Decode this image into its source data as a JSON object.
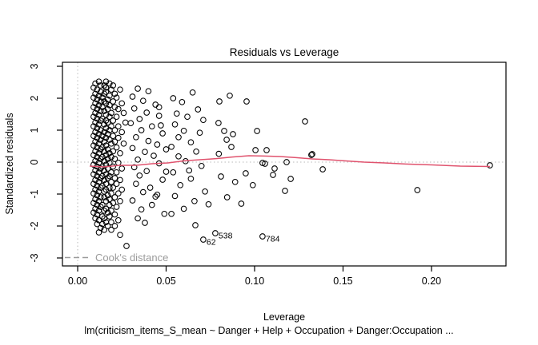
{
  "figure": {
    "title": "Residuals vs Leverage",
    "x_axis_label": "Leverage",
    "y_axis_label": "Standardized residuals",
    "caption": "lm(criticism_items_S_mean ~ Danger + Help + Occupation + Danger:Occupation  ...",
    "legend": {
      "label": "Cook's distance"
    }
  },
  "colors": {
    "foreground": "#000000",
    "smooth_line": "#e0536e",
    "reference_dotted": "#c6c6c6",
    "legend_gray": "#9b9b9b",
    "background": "#ffffff"
  },
  "chart_data": {
    "type": "scatter",
    "title": "Residuals vs Leverage",
    "xlabel": "Leverage",
    "ylabel": "Standardized residuals",
    "xlim": [
      -0.0086,
      0.2421
    ],
    "ylim": [
      -3.25,
      3.125
    ],
    "grid": false,
    "x_ticks": {
      "values": [
        0.0,
        0.05,
        0.1,
        0.15,
        0.2
      ],
      "labels": [
        "0.00",
        "0.05",
        "0.10",
        "0.15",
        "0.20"
      ]
    },
    "y_ticks": {
      "values": [
        -3,
        -2,
        -1,
        0,
        1,
        2,
        3
      ],
      "labels": [
        "-3",
        "-2",
        "-1",
        "0",
        "1",
        "2",
        "3"
      ]
    },
    "reference_lines": {
      "horizontal_at": 0,
      "vertical_at": 0
    },
    "legend": {
      "label": "Cook's distance",
      "position": "bottom-left",
      "line_style": "dashed"
    },
    "labeled_points": [
      {
        "label": "62",
        "x": 0.071,
        "y": -2.425
      },
      {
        "label": "538",
        "x": 0.0778,
        "y": -2.225
      },
      {
        "label": "784",
        "x": 0.1045,
        "y": -2.325
      }
    ],
    "smooth_line": [
      [
        0.0068,
        -0.125
      ],
      [
        0.0149,
        -0.15
      ],
      [
        0.024,
        -0.1
      ],
      [
        0.033,
        -0.1
      ],
      [
        0.0421,
        -0.05
      ],
      [
        0.0511,
        -0.025
      ],
      [
        0.0602,
        0.04
      ],
      [
        0.0692,
        0.075
      ],
      [
        0.0783,
        0.11
      ],
      [
        0.0873,
        0.16
      ],
      [
        0.0968,
        0.2
      ],
      [
        0.1054,
        0.19
      ],
      [
        0.1145,
        0.175
      ],
      [
        0.1235,
        0.14
      ],
      [
        0.1326,
        0.1
      ],
      [
        0.1421,
        0.075
      ],
      [
        0.1507,
        0.04
      ],
      [
        0.162,
        0.0
      ],
      [
        0.1733,
        -0.025
      ],
      [
        0.1869,
        -0.0625
      ],
      [
        0.2005,
        -0.0875
      ],
      [
        0.2163,
        -0.125
      ],
      [
        0.233,
        -0.1375
      ]
    ],
    "points": [
      [
        0.012,
        2.52
      ],
      [
        0.016,
        2.52
      ],
      [
        0.01,
        2.46
      ],
      [
        0.018,
        2.46
      ],
      [
        0.013,
        2.4
      ],
      [
        0.02,
        2.4
      ],
      [
        0.015,
        2.4
      ],
      [
        0.009,
        2.33
      ],
      [
        0.016,
        2.33
      ],
      [
        0.011,
        2.27
      ],
      [
        0.019,
        2.27
      ],
      [
        0.024,
        2.27
      ],
      [
        0.013,
        2.2
      ],
      [
        0.016,
        2.2
      ],
      [
        0.01,
        2.14
      ],
      [
        0.021,
        2.14
      ],
      [
        0.015,
        2.14
      ],
      [
        0.012,
        2.08
      ],
      [
        0.018,
        2.08
      ],
      [
        0.009,
        2.02
      ],
      [
        0.014,
        2.02
      ],
      [
        0.022,
        2.02
      ],
      [
        0.011,
        1.96
      ],
      [
        0.017,
        1.96
      ],
      [
        0.013,
        1.9
      ],
      [
        0.02,
        1.9
      ],
      [
        0.015,
        1.9
      ],
      [
        0.01,
        1.84
      ],
      [
        0.016,
        1.84
      ],
      [
        0.025,
        1.84
      ],
      [
        0.012,
        1.78
      ],
      [
        0.018,
        1.78
      ],
      [
        0.009,
        1.72
      ],
      [
        0.014,
        1.72
      ],
      [
        0.021,
        1.72
      ],
      [
        0.011,
        1.66
      ],
      [
        0.017,
        1.66
      ],
      [
        0.023,
        1.66
      ],
      [
        0.013,
        1.6
      ],
      [
        0.015,
        1.6
      ],
      [
        0.01,
        1.54
      ],
      [
        0.019,
        1.54
      ],
      [
        0.026,
        1.54
      ],
      [
        0.012,
        1.48
      ],
      [
        0.016,
        1.48
      ],
      [
        0.009,
        1.42
      ],
      [
        0.018,
        1.42
      ],
      [
        0.022,
        1.42
      ],
      [
        0.011,
        1.36
      ],
      [
        0.014,
        1.36
      ],
      [
        0.013,
        1.3
      ],
      [
        0.02,
        1.3
      ],
      [
        0.016,
        1.3
      ],
      [
        0.01,
        1.24
      ],
      [
        0.017,
        1.24
      ],
      [
        0.027,
        1.24
      ],
      [
        0.012,
        1.18
      ],
      [
        0.015,
        1.18
      ],
      [
        0.009,
        1.12
      ],
      [
        0.019,
        1.12
      ],
      [
        0.023,
        1.12
      ],
      [
        0.011,
        1.06
      ],
      [
        0.016,
        1.06
      ],
      [
        0.013,
        1.0
      ],
      [
        0.018,
        1.0
      ],
      [
        0.021,
        1.0
      ],
      [
        0.01,
        0.94
      ],
      [
        0.015,
        0.94
      ],
      [
        0.025,
        0.94
      ],
      [
        0.012,
        0.88
      ],
      [
        0.017,
        0.88
      ],
      [
        0.009,
        0.82
      ],
      [
        0.02,
        0.82
      ],
      [
        0.014,
        0.82
      ],
      [
        0.011,
        0.76
      ],
      [
        0.016,
        0.76
      ],
      [
        0.023,
        0.76
      ],
      [
        0.013,
        0.7
      ],
      [
        0.018,
        0.7
      ],
      [
        0.01,
        0.64
      ],
      [
        0.015,
        0.64
      ],
      [
        0.021,
        0.64
      ],
      [
        0.012,
        0.58
      ],
      [
        0.019,
        0.58
      ],
      [
        0.026,
        0.58
      ],
      [
        0.009,
        0.52
      ],
      [
        0.016,
        0.52
      ],
      [
        0.011,
        0.46
      ],
      [
        0.014,
        0.46
      ],
      [
        0.022,
        0.46
      ],
      [
        0.013,
        0.4
      ],
      [
        0.017,
        0.4
      ],
      [
        0.01,
        0.34
      ],
      [
        0.02,
        0.34
      ],
      [
        0.015,
        0.34
      ],
      [
        0.012,
        0.28
      ],
      [
        0.018,
        0.28
      ],
      [
        0.024,
        0.28
      ],
      [
        0.009,
        0.22
      ],
      [
        0.016,
        0.22
      ],
      [
        0.011,
        0.16
      ],
      [
        0.019,
        0.16
      ],
      [
        0.014,
        0.16
      ],
      [
        0.013,
        0.1
      ],
      [
        0.021,
        0.1
      ],
      [
        0.017,
        0.1
      ],
      [
        0.01,
        0.04
      ],
      [
        0.015,
        0.04
      ],
      [
        0.012,
        -0.02
      ],
      [
        0.018,
        -0.02
      ],
      [
        0.023,
        -0.02
      ],
      [
        0.009,
        -0.08
      ],
      [
        0.016,
        -0.08
      ],
      [
        0.011,
        -0.14
      ],
      [
        0.02,
        -0.14
      ],
      [
        0.014,
        -0.14
      ],
      [
        0.013,
        -0.2
      ],
      [
        0.017,
        -0.2
      ],
      [
        0.025,
        -0.2
      ],
      [
        0.01,
        -0.26
      ],
      [
        0.015,
        -0.26
      ],
      [
        0.012,
        -0.32
      ],
      [
        0.019,
        -0.32
      ],
      [
        0.022,
        -0.32
      ],
      [
        0.009,
        -0.38
      ],
      [
        0.016,
        -0.38
      ],
      [
        0.011,
        -0.44
      ],
      [
        0.018,
        -0.44
      ],
      [
        0.014,
        -0.44
      ],
      [
        0.013,
        -0.5
      ],
      [
        0.021,
        -0.5
      ],
      [
        0.017,
        -0.5
      ],
      [
        0.01,
        -0.56
      ],
      [
        0.015,
        -0.56
      ],
      [
        0.024,
        -0.56
      ],
      [
        0.012,
        -0.62
      ],
      [
        0.019,
        -0.62
      ],
      [
        0.009,
        -0.68
      ],
      [
        0.016,
        -0.68
      ],
      [
        0.022,
        -0.68
      ],
      [
        0.011,
        -0.74
      ],
      [
        0.014,
        -0.74
      ],
      [
        0.013,
        -0.8
      ],
      [
        0.018,
        -0.8
      ],
      [
        0.02,
        -0.8
      ],
      [
        0.01,
        -0.86
      ],
      [
        0.016,
        -0.86
      ],
      [
        0.025,
        -0.86
      ],
      [
        0.012,
        -0.92
      ],
      [
        0.015,
        -0.92
      ],
      [
        0.009,
        -0.98
      ],
      [
        0.019,
        -0.98
      ],
      [
        0.023,
        -0.98
      ],
      [
        0.011,
        -1.04
      ],
      [
        0.017,
        -1.04
      ],
      [
        0.013,
        -1.1
      ],
      [
        0.015,
        -1.1
      ],
      [
        0.021,
        -1.1
      ],
      [
        0.01,
        -1.16
      ],
      [
        0.018,
        -1.16
      ],
      [
        0.012,
        -1.22
      ],
      [
        0.016,
        -1.22
      ],
      [
        0.024,
        -1.22
      ],
      [
        0.009,
        -1.28
      ],
      [
        0.02,
        -1.28
      ],
      [
        0.011,
        -1.34
      ],
      [
        0.014,
        -1.34
      ],
      [
        0.018,
        -1.34
      ],
      [
        0.013,
        -1.4
      ],
      [
        0.022,
        -1.4
      ],
      [
        0.01,
        -1.46
      ],
      [
        0.016,
        -1.46
      ],
      [
        0.012,
        -1.52
      ],
      [
        0.019,
        -1.52
      ],
      [
        0.015,
        -1.52
      ],
      [
        0.009,
        -1.58
      ],
      [
        0.017,
        -1.58
      ],
      [
        0.011,
        -1.64
      ],
      [
        0.021,
        -1.64
      ],
      [
        0.014,
        -1.7
      ],
      [
        0.018,
        -1.7
      ],
      [
        0.01,
        -1.76
      ],
      [
        0.015,
        -1.76
      ],
      [
        0.012,
        -1.82
      ],
      [
        0.023,
        -1.82
      ],
      [
        0.016,
        -1.88
      ],
      [
        0.019,
        -1.88
      ],
      [
        0.011,
        -1.94
      ],
      [
        0.014,
        -1.94
      ],
      [
        0.017,
        -2.0
      ],
      [
        0.021,
        -2.0
      ],
      [
        0.013,
        -2.06
      ],
      [
        0.015,
        -2.12
      ],
      [
        0.019,
        -2.12
      ],
      [
        0.012,
        -2.2
      ],
      [
        0.024,
        -2.28
      ],
      [
        0.034,
        2.3
      ],
      [
        0.04,
        2.22
      ],
      [
        0.031,
        2.05
      ],
      [
        0.037,
        1.92
      ],
      [
        0.044,
        1.8
      ],
      [
        0.032,
        1.68
      ],
      [
        0.039,
        1.55
      ],
      [
        0.046,
        1.45
      ],
      [
        0.035,
        1.35
      ],
      [
        0.03,
        1.22
      ],
      [
        0.042,
        1.12
      ],
      [
        0.036,
        1.0
      ],
      [
        0.048,
        0.9
      ],
      [
        0.033,
        0.78
      ],
      [
        0.04,
        0.66
      ],
      [
        0.045,
        0.55
      ],
      [
        0.031,
        0.44
      ],
      [
        0.038,
        0.32
      ],
      [
        0.043,
        0.2
      ],
      [
        0.034,
        0.08
      ],
      [
        0.046,
        -0.04
      ],
      [
        0.032,
        -0.16
      ],
      [
        0.039,
        -0.28
      ],
      [
        0.035,
        -0.42
      ],
      [
        0.048,
        -0.55
      ],
      [
        0.033,
        -0.68
      ],
      [
        0.041,
        -0.8
      ],
      [
        0.037,
        -0.94
      ],
      [
        0.044,
        -1.08
      ],
      [
        0.031,
        -1.2
      ],
      [
        0.042,
        -1.34
      ],
      [
        0.036,
        -1.48
      ],
      [
        0.049,
        -1.62
      ],
      [
        0.034,
        -1.76
      ],
      [
        0.045,
        -1.02
      ],
      [
        0.038,
        -1.9
      ],
      [
        0.047,
        1.15
      ],
      [
        0.05,
        0.4
      ],
      [
        0.05,
        -0.3
      ],
      [
        0.046,
        1.72
      ],
      [
        0.0276,
        -2.625
      ],
      [
        0.054,
        2.0
      ],
      [
        0.059,
        1.88
      ],
      [
        0.065,
        2.18
      ],
      [
        0.056,
        1.52
      ],
      [
        0.062,
        1.42
      ],
      [
        0.068,
        1.65
      ],
      [
        0.055,
        1.18
      ],
      [
        0.06,
        0.98
      ],
      [
        0.071,
        1.32
      ],
      [
        0.057,
        0.78
      ],
      [
        0.064,
        0.62
      ],
      [
        0.053,
        0.48
      ],
      [
        0.067,
        0.33
      ],
      [
        0.057,
        0.18
      ],
      [
        0.061,
        0.03
      ],
      [
        0.07,
        -0.12
      ],
      [
        0.054,
        -0.32
      ],
      [
        0.064,
        -0.52
      ],
      [
        0.058,
        -0.72
      ],
      [
        0.072,
        -0.92
      ],
      [
        0.055,
        -1.06
      ],
      [
        0.066,
        -1.22
      ],
      [
        0.06,
        -1.46
      ],
      [
        0.053,
        -1.62
      ],
      [
        0.063,
        -0.26
      ],
      [
        0.069,
        0.92
      ],
      [
        0.0665,
        -1.975
      ],
      [
        0.074,
        -1.32
      ],
      [
        0.0801,
        1.9
      ],
      [
        0.0955,
        1.9
      ],
      [
        0.0796,
        1.225
      ],
      [
        0.0828,
        0.975
      ],
      [
        0.0878,
        0.875
      ],
      [
        0.0842,
        0.7
      ],
      [
        0.0869,
        0.475
      ],
      [
        0.1014,
        0.975
      ],
      [
        0.1005,
        0.375
      ],
      [
        0.081,
        -0.45
      ],
      [
        0.089,
        -0.62
      ],
      [
        0.095,
        -0.35
      ],
      [
        0.0845,
        -1.1
      ],
      [
        0.0925,
        -1.3
      ],
      [
        0.0798,
        0.26
      ],
      [
        0.086,
        2.08
      ],
      [
        0.099,
        -0.72
      ],
      [
        0.1068,
        0.375
      ],
      [
        0.1059,
        -0.05
      ],
      [
        0.1045,
        -0.025
      ],
      [
        0.1113,
        -0.2
      ],
      [
        0.1104,
        -0.4
      ],
      [
        0.1172,
        -0.9
      ],
      [
        0.1181,
        0.0
      ],
      [
        0.1204,
        -0.525
      ],
      [
        0.1285,
        1.275
      ],
      [
        0.1321,
        0.225
      ],
      [
        0.1326,
        0.25
      ],
      [
        0.1385,
        -0.225
      ],
      [
        0.192,
        -0.875
      ],
      [
        0.233,
        -0.1
      ]
    ]
  }
}
